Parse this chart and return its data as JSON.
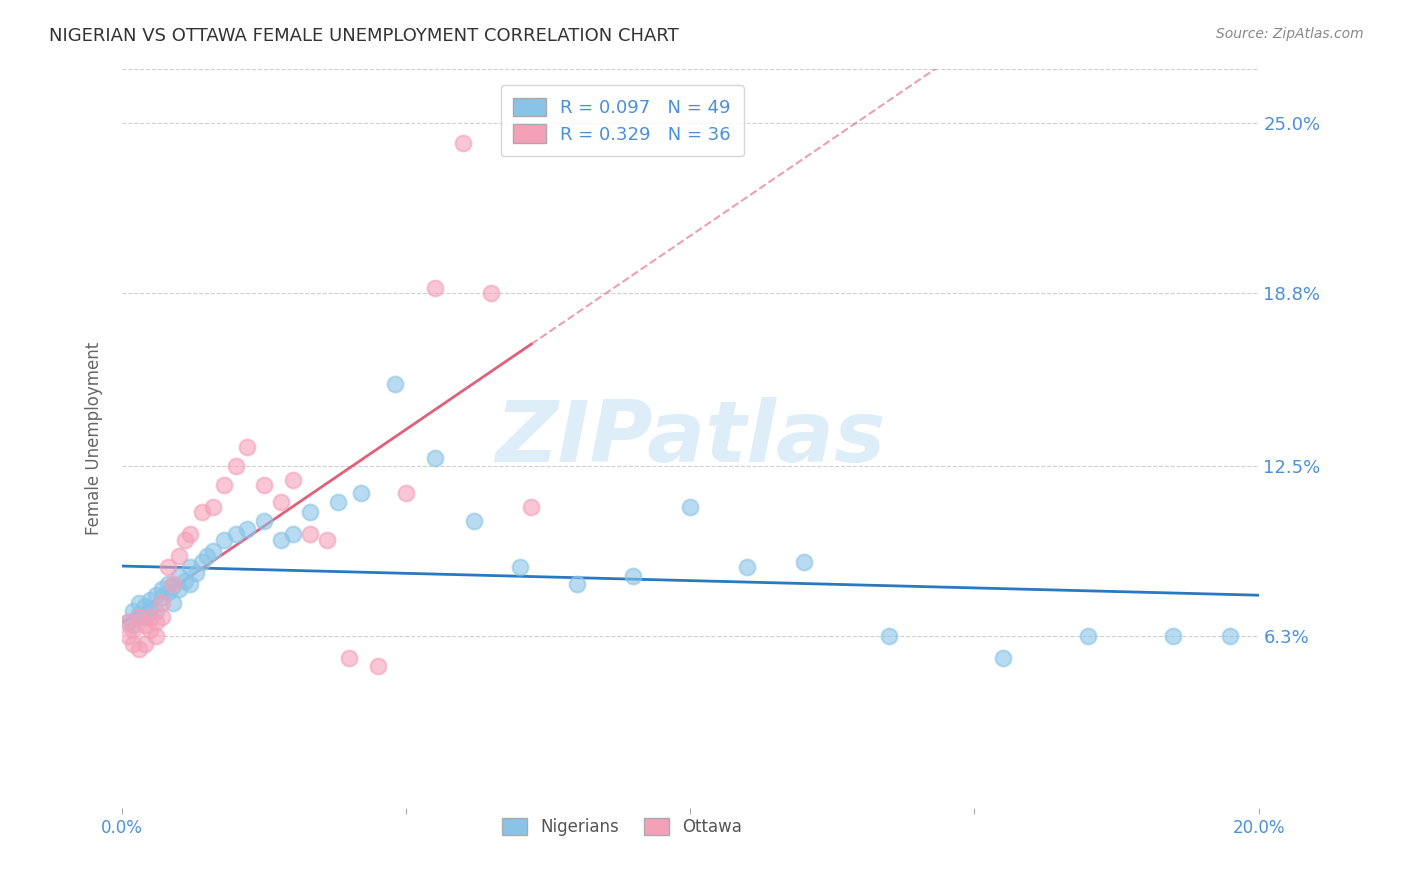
{
  "title": "NIGERIAN VS OTTAWA FEMALE UNEMPLOYMENT CORRELATION CHART",
  "source": "Source: ZipAtlas.com",
  "ylabel": "Female Unemployment",
  "ytick_labels": [
    "25.0%",
    "18.8%",
    "12.5%",
    "6.3%"
  ],
  "ytick_values": [
    0.25,
    0.188,
    0.125,
    0.063
  ],
  "xlim": [
    0.0,
    0.2
  ],
  "ylim": [
    0.0,
    0.27
  ],
  "nigerian_color": "#89c4e8",
  "ottawa_color": "#f4a0b8",
  "nigerian_line_color": "#2979c0",
  "ottawa_line_color": "#e0607a",
  "background_color": "#ffffff",
  "grid_color": "#d0d0d0",
  "axis_label_color": "#4a90d9",
  "watermark_color": "#ddeef8",
  "nigerians_x": [
    0.001,
    0.002,
    0.002,
    0.003,
    0.003,
    0.004,
    0.004,
    0.005,
    0.005,
    0.006,
    0.006,
    0.007,
    0.007,
    0.008,
    0.008,
    0.009,
    0.009,
    0.01,
    0.01,
    0.011,
    0.012,
    0.012,
    0.013,
    0.014,
    0.015,
    0.016,
    0.018,
    0.02,
    0.022,
    0.025,
    0.028,
    0.03,
    0.033,
    0.038,
    0.042,
    0.048,
    0.055,
    0.062,
    0.07,
    0.08,
    0.09,
    0.1,
    0.11,
    0.12,
    0.135,
    0.155,
    0.17,
    0.185,
    0.195
  ],
  "nigerians_y": [
    0.068,
    0.067,
    0.072,
    0.071,
    0.075,
    0.07,
    0.074,
    0.076,
    0.073,
    0.072,
    0.078,
    0.077,
    0.08,
    0.079,
    0.082,
    0.081,
    0.075,
    0.08,
    0.085,
    0.083,
    0.088,
    0.082,
    0.086,
    0.09,
    0.092,
    0.094,
    0.098,
    0.1,
    0.102,
    0.105,
    0.098,
    0.1,
    0.108,
    0.112,
    0.115,
    0.155,
    0.128,
    0.105,
    0.088,
    0.082,
    0.085,
    0.11,
    0.088,
    0.09,
    0.063,
    0.055,
    0.063,
    0.063,
    0.063
  ],
  "ottawa_x": [
    0.001,
    0.001,
    0.002,
    0.002,
    0.003,
    0.003,
    0.004,
    0.004,
    0.005,
    0.005,
    0.006,
    0.006,
    0.007,
    0.007,
    0.008,
    0.009,
    0.01,
    0.011,
    0.012,
    0.014,
    0.016,
    0.018,
    0.02,
    0.022,
    0.025,
    0.028,
    0.03,
    0.033,
    0.036,
    0.04,
    0.045,
    0.05,
    0.055,
    0.06,
    0.065,
    0.072
  ],
  "ottawa_y": [
    0.063,
    0.068,
    0.06,
    0.065,
    0.058,
    0.07,
    0.067,
    0.06,
    0.065,
    0.07,
    0.063,
    0.068,
    0.075,
    0.07,
    0.088,
    0.082,
    0.092,
    0.098,
    0.1,
    0.108,
    0.11,
    0.118,
    0.125,
    0.132,
    0.118,
    0.112,
    0.12,
    0.1,
    0.098,
    0.055,
    0.052,
    0.115,
    0.19,
    0.243,
    0.188,
    0.11
  ]
}
